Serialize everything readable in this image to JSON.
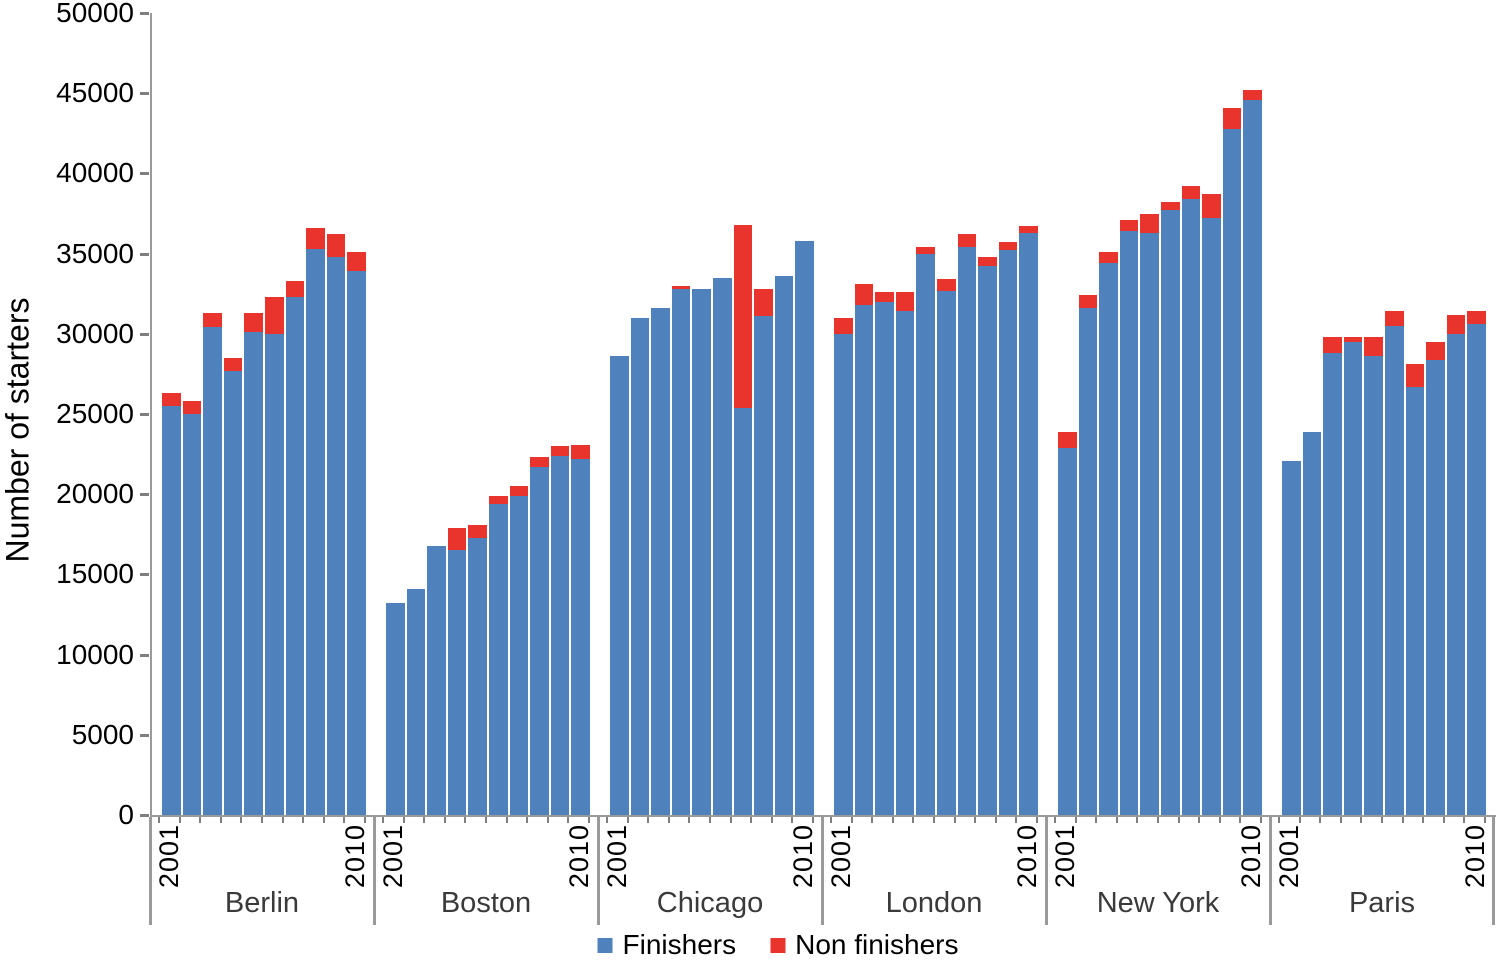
{
  "chart_data": {
    "type": "bar",
    "stacked": true,
    "ylabel": "Number of starters",
    "ylim": [
      0,
      50000
    ],
    "ytick_step": 5000,
    "ytick_labels": [
      "50000",
      "45000",
      "40000",
      "35000",
      "30000",
      "25000",
      "20000",
      "15000",
      "10000",
      "5000",
      "0"
    ],
    "grid": false,
    "legend_position": "bottom",
    "legend": [
      {
        "label": "Finishers",
        "color": "#4F81BD"
      },
      {
        "label": "Non finishers",
        "color": "#E9332D"
      }
    ],
    "years": [
      "2001",
      "2002",
      "2003",
      "2004",
      "2005",
      "2006",
      "2007",
      "2008",
      "2009",
      "2010"
    ],
    "x_axis_shown_year_labels": [
      "2001",
      "2010"
    ],
    "groups": [
      {
        "city": "Berlin",
        "finishers": [
          25500,
          25000,
          30400,
          27700,
          30100,
          30000,
          32300,
          35300,
          34800,
          33900
        ],
        "non_finishers": [
          800,
          800,
          900,
          800,
          1200,
          2300,
          1000,
          1300,
          1400,
          1200
        ]
      },
      {
        "city": "Boston",
        "finishers": [
          13200,
          14100,
          16800,
          16500,
          17300,
          19400,
          19900,
          21700,
          22400,
          22200
        ],
        "non_finishers": [
          0,
          0,
          0,
          1400,
          800,
          500,
          600,
          600,
          600,
          900
        ]
      },
      {
        "city": "Chicago",
        "finishers": [
          28600,
          31000,
          31600,
          32800,
          32800,
          33500,
          25400,
          31100,
          33600,
          35800
        ],
        "non_finishers": [
          0,
          0,
          0,
          200,
          0,
          0,
          11400,
          1700,
          0,
          0
        ]
      },
      {
        "city": "London",
        "finishers": [
          30000,
          31800,
          32000,
          31400,
          35000,
          32700,
          35400,
          34200,
          35200,
          36300
        ],
        "non_finishers": [
          1000,
          1300,
          600,
          1200,
          400,
          700,
          800,
          600,
          500,
          400
        ]
      },
      {
        "city": "New York",
        "finishers": [
          22900,
          31600,
          34400,
          36400,
          36300,
          37700,
          38400,
          37200,
          42800,
          44600
        ],
        "non_finishers": [
          1000,
          800,
          700,
          700,
          1200,
          500,
          800,
          1500,
          1300,
          600
        ]
      },
      {
        "city": "Paris",
        "finishers": [
          22100,
          23900,
          28800,
          29500,
          28600,
          30500,
          26700,
          28400,
          30000,
          30600
        ],
        "non_finishers": [
          0,
          0,
          1000,
          300,
          1200,
          900,
          1400,
          1100,
          1200,
          800
        ]
      }
    ]
  },
  "colors": {
    "axis_line": "#9a9a9a",
    "tick_mark": "#7f7f7f",
    "background": "#ffffff",
    "city_label": "#3a3a3a"
  }
}
